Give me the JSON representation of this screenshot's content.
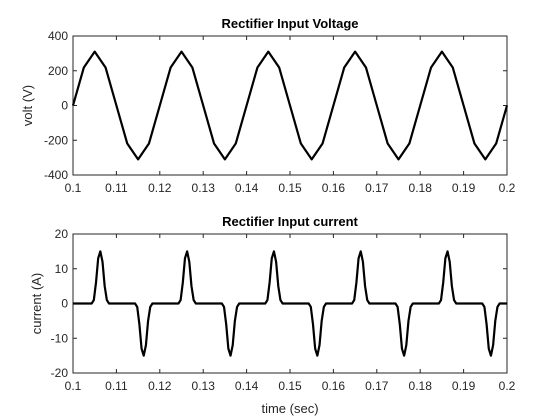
{
  "chart_data": [
    {
      "type": "line",
      "title": "Rectifier Input Voltage",
      "xlabel": "",
      "ylabel": "volt (V)",
      "xlim": [
        0.1,
        0.2
      ],
      "ylim": [
        -400,
        400
      ],
      "xticks": [
        0.1,
        0.11,
        0.12,
        0.13,
        0.14,
        0.15,
        0.16,
        0.17,
        0.18,
        0.19,
        0.2
      ],
      "xtick_labels": [
        "0.1",
        "0.11",
        "0.12",
        "0.13",
        "0.14",
        "0.15",
        "0.16",
        "0.17",
        "0.18",
        "0.19",
        "0.2"
      ],
      "yticks": [
        -400,
        -200,
        0,
        200,
        400
      ],
      "ytick_labels": [
        "-400",
        "-200",
        "0",
        "200",
        "400"
      ],
      "grid": false,
      "color": "#000000",
      "series": [
        {
          "x": [
            0.1,
            0.1025,
            0.105,
            0.1075,
            0.11,
            0.1125,
            0.115,
            0.1175,
            0.12,
            0.1225,
            0.125,
            0.1275,
            0.13,
            0.1325,
            0.135,
            0.1375,
            0.14,
            0.1425,
            0.145,
            0.1475,
            0.15,
            0.1525,
            0.155,
            0.1575,
            0.16,
            0.1625,
            0.165,
            0.1675,
            0.17,
            0.1725,
            0.175,
            0.1775,
            0.18,
            0.1825,
            0.185,
            0.1875,
            0.19,
            0.1925,
            0.195,
            0.1975,
            0.2
          ],
          "y": [
            0,
            219,
            310,
            219,
            0,
            -219,
            -310,
            -219,
            0,
            219,
            310,
            219,
            0,
            -219,
            -310,
            -219,
            0,
            219,
            310,
            219,
            0,
            -219,
            -310,
            -219,
            0,
            219,
            310,
            219,
            0,
            -219,
            -310,
            -219,
            0,
            219,
            310,
            219,
            0,
            -219,
            -310,
            -219,
            0
          ]
        }
      ]
    },
    {
      "type": "line",
      "title": "Rectifier Input current",
      "xlabel": "time (sec)",
      "ylabel": "current (A)",
      "xlim": [
        0.1,
        0.2
      ],
      "ylim": [
        -20,
        20
      ],
      "xticks": [
        0.1,
        0.11,
        0.12,
        0.13,
        0.14,
        0.15,
        0.16,
        0.17,
        0.18,
        0.19,
        0.2
      ],
      "xtick_labels": [
        "0.1",
        "0.11",
        "0.12",
        "0.13",
        "0.14",
        "0.15",
        "0.16",
        "0.17",
        "0.18",
        "0.19",
        "0.2"
      ],
      "yticks": [
        -20,
        -10,
        0,
        10,
        20
      ],
      "ytick_labels": [
        "-20",
        "-10",
        "0",
        "10",
        "20"
      ],
      "grid": false,
      "color": "#000000",
      "series": [
        {
          "x": [
            0.1,
            0.1043,
            0.1048,
            0.1053,
            0.1058,
            0.1063,
            0.1068,
            0.1073,
            0.1078,
            0.1083,
            0.1143,
            0.1148,
            0.1153,
            0.1158,
            0.1163,
            0.1168,
            0.1173,
            0.1178,
            0.1183,
            0.1243,
            0.1248,
            0.1253,
            0.1258,
            0.1263,
            0.1268,
            0.1273,
            0.1278,
            0.1283,
            0.1343,
            0.1348,
            0.1353,
            0.1358,
            0.1363,
            0.1368,
            0.1373,
            0.1378,
            0.1383,
            0.1443,
            0.1448,
            0.1453,
            0.1458,
            0.1463,
            0.1468,
            0.1473,
            0.1478,
            0.1483,
            0.1543,
            0.1548,
            0.1553,
            0.1558,
            0.1563,
            0.1568,
            0.1573,
            0.1578,
            0.1583,
            0.1643,
            0.1648,
            0.1653,
            0.1658,
            0.1663,
            0.1668,
            0.1673,
            0.1678,
            0.1683,
            0.1743,
            0.1748,
            0.1753,
            0.1758,
            0.1763,
            0.1768,
            0.1773,
            0.1778,
            0.1783,
            0.1843,
            0.1848,
            0.1853,
            0.1858,
            0.1863,
            0.1868,
            0.1873,
            0.1878,
            0.1883,
            0.1943,
            0.1948,
            0.1953,
            0.1958,
            0.1963,
            0.1968,
            0.1973,
            0.1978,
            0.1983,
            0.2
          ],
          "y": [
            0,
            0,
            1,
            6,
            13,
            15,
            12,
            5,
            1,
            0,
            0,
            -1,
            -6,
            -13,
            -15,
            -12,
            -5,
            -1,
            0,
            0,
            1,
            6,
            13,
            15,
            12,
            5,
            1,
            0,
            0,
            -1,
            -6,
            -13,
            -15,
            -12,
            -5,
            -1,
            0,
            0,
            1,
            6,
            13,
            15,
            12,
            5,
            1,
            0,
            0,
            -1,
            -6,
            -13,
            -15,
            -12,
            -5,
            -1,
            0,
            0,
            1,
            6,
            13,
            15,
            12,
            5,
            1,
            0,
            0,
            -1,
            -6,
            -13,
            -15,
            -12,
            -5,
            -1,
            0,
            0,
            1,
            6,
            13,
            15,
            12,
            5,
            1,
            0,
            0,
            -1,
            -6,
            -13,
            -15,
            -12,
            -5,
            -1,
            0,
            0
          ]
        }
      ]
    }
  ]
}
